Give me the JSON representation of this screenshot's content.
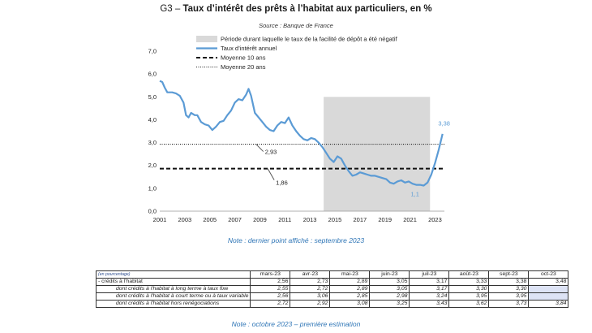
{
  "header": {
    "code": "G3 – ",
    "title": "Taux d’intérêt des prêts à l’habitat aux particuliers, en %",
    "source": "Source : Banque de France"
  },
  "chart_data": {
    "type": "line",
    "xlim": [
      2001,
      2023.75
    ],
    "ylim": [
      0,
      7
    ],
    "y_ticks": [
      "0,0",
      "1,0",
      "2,0",
      "3,0",
      "4,0",
      "5,0",
      "6,0",
      "7,0"
    ],
    "x_ticks": [
      "2001",
      "2003",
      "2005",
      "2007",
      "2009",
      "2011",
      "2013",
      "2015",
      "2017",
      "2019",
      "2021",
      "2023"
    ],
    "legend": [
      {
        "label": "Période durant laquelle le taux de la facilité de dépôt a été négatif",
        "style": "gray-area"
      },
      {
        "label": "Taux d’intérêt annuel",
        "style": "blue-line"
      },
      {
        "label": "Moyenne 10 ans",
        "style": "dashed"
      },
      {
        "label": "Moyenne 20 ans",
        "style": "dotted"
      }
    ],
    "legend_position": "top-right",
    "negative_rate_period": [
      2014.1,
      2022.6
    ],
    "moyenne_10_ans": 1.86,
    "moyenne_20_ans": 2.93,
    "labels": {
      "m10": "1,86",
      "m20": "2,93",
      "min": "1,1",
      "last": "3,38"
    },
    "series": [
      {
        "name": "Taux d’intérêt annuel",
        "color": "#5b9bd5",
        "x": [
          2001.0,
          2001.2,
          2001.4,
          2001.6,
          2001.8,
          2002.0,
          2002.3,
          2002.6,
          2002.9,
          2003.1,
          2003.3,
          2003.5,
          2003.8,
          2004.0,
          2004.3,
          2004.6,
          2004.9,
          2005.2,
          2005.5,
          2005.8,
          2006.1,
          2006.4,
          2006.7,
          2007.0,
          2007.3,
          2007.6,
          2007.9,
          2008.1,
          2008.3,
          2008.6,
          2008.9,
          2009.2,
          2009.5,
          2009.8,
          2010.1,
          2010.4,
          2010.7,
          2011.0,
          2011.3,
          2011.6,
          2011.9,
          2012.2,
          2012.5,
          2012.8,
          2013.1,
          2013.4,
          2013.7,
          2014.0,
          2014.3,
          2014.6,
          2014.9,
          2015.2,
          2015.5,
          2015.8,
          2016.1,
          2016.4,
          2016.7,
          2017.0,
          2017.3,
          2017.6,
          2017.9,
          2018.2,
          2018.5,
          2018.8,
          2019.1,
          2019.4,
          2019.7,
          2020.0,
          2020.3,
          2020.6,
          2020.9,
          2021.2,
          2021.5,
          2021.8,
          2022.1,
          2022.4,
          2022.7,
          2023.0,
          2023.3,
          2023.6
        ],
        "y": [
          5.7,
          5.65,
          5.4,
          5.2,
          5.2,
          5.2,
          5.15,
          5.05,
          4.75,
          4.2,
          4.1,
          4.3,
          4.2,
          4.2,
          3.9,
          3.8,
          3.75,
          3.55,
          3.7,
          3.9,
          3.95,
          4.2,
          4.4,
          4.75,
          4.9,
          4.85,
          5.1,
          5.35,
          5.05,
          4.3,
          4.1,
          3.9,
          3.7,
          3.55,
          3.5,
          3.75,
          3.9,
          3.85,
          4.1,
          3.75,
          3.5,
          3.3,
          3.15,
          3.1,
          3.2,
          3.15,
          3.0,
          2.8,
          2.55,
          2.3,
          2.15,
          2.4,
          2.3,
          2.0,
          1.75,
          1.55,
          1.6,
          1.7,
          1.65,
          1.6,
          1.55,
          1.55,
          1.5,
          1.45,
          1.4,
          1.25,
          1.2,
          1.3,
          1.35,
          1.25,
          1.3,
          1.2,
          1.15,
          1.15,
          1.12,
          1.25,
          1.6,
          2.1,
          2.7,
          3.38
        ]
      }
    ]
  },
  "notes": {
    "note1": "Note : dernier point affiché : septembre 2023",
    "note2": "Note : octobre 2023 – première estimation"
  },
  "table": {
    "header_label": "(en pourcentage)",
    "columns": [
      "mars-23",
      "avr-23",
      "mai-23",
      "juin-23",
      "juil-23",
      "août-23",
      "sept-23",
      "oct-23"
    ],
    "rows": [
      {
        "label": "- crédits à l'habitat",
        "values": [
          "2,56",
          "2,73",
          "2,89",
          "3,05",
          "3,17",
          "3,33",
          "3,38",
          "3,48"
        ],
        "sub": false
      },
      {
        "label": "dont crédits à l'habitat à long terme à taux fixe",
        "values": [
          "2,55",
          "2,72",
          "2,89",
          "3,05",
          "3,17",
          "3,30",
          "3,30",
          ""
        ],
        "sub": true
      },
      {
        "label": "dont crédits à l'habitat à court terme ou à taux variable",
        "values": [
          "2,56",
          "3,06",
          "2,85",
          "2,98",
          "3,24",
          "3,95",
          "3,95",
          ""
        ],
        "sub": true
      },
      {
        "label": "dont crédits à l'habitat hors renégociations",
        "values": [
          "2,72",
          "2,92",
          "3,08",
          "3,25",
          "3,43",
          "3,62",
          "3,73",
          "3,84"
        ],
        "sub": true
      }
    ]
  }
}
